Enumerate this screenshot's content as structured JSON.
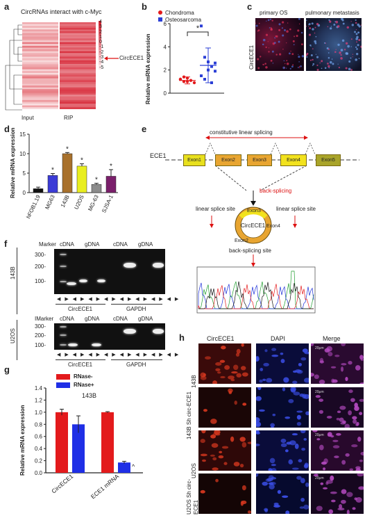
{
  "panels": {
    "a": {
      "letter": "a",
      "title": "CircRNAs interact with c-Myc",
      "x_labels": [
        "Input",
        "RIP"
      ],
      "callout": "CircECE1",
      "scale_ticks": [
        "4",
        "3",
        "2",
        "1",
        "0",
        "-1",
        "-2",
        "-3",
        "-4",
        "-5"
      ]
    },
    "b": {
      "letter": "b",
      "legend": [
        "Chondroma",
        "Osteosarcoma"
      ],
      "ylabel": "Relative mRNA expression",
      "significance": "*"
    },
    "c": {
      "letter": "c",
      "columns": [
        "primary OS",
        "pulmonary metastasis"
      ],
      "row_label": "CircECE1"
    },
    "d": {
      "letter": "d",
      "ylabel": "Relative mRNA expression"
    },
    "e": {
      "letter": "e",
      "gene": "ECE1",
      "exons": [
        "Exon1",
        "Exon2",
        "Exon3",
        "Exon4",
        "Exon5"
      ],
      "top_label": "constitutive linear splicing",
      "back_splicing": "back-splicing",
      "left_site": "linear splice site",
      "right_site": "linear splice site",
      "circle_label": "CircECE1",
      "ring_exons": [
        "Exon3",
        "Exon4",
        "Exon2"
      ],
      "bottom_site": "back-splicing site"
    },
    "f": {
      "letter": "f",
      "marker_label": "Marker",
      "lane_groups": [
        "cDNA",
        "gDNA",
        "cDNA",
        "gDNA"
      ],
      "size_markers": [
        "300-",
        "200-",
        "100-"
      ],
      "targets": [
        "CircECE1",
        "GAPDH"
      ],
      "cell_lines": [
        "143B",
        "U2OS"
      ],
      "gel2_marker": "IMarker"
    },
    "g": {
      "letter": "g",
      "legend": [
        "RNase-",
        "RNase+"
      ],
      "ylabel": "Relative mRNA expression",
      "inner_label": "143B",
      "caret": "^"
    },
    "h": {
      "letter": "h",
      "columns": [
        "CircECE1",
        "DAPI",
        "Merge"
      ],
      "rows": [
        "143B",
        "143B Sh circ-ECE1",
        "U2OS",
        "U2OS Sh circ-ECE1"
      ],
      "scale_text": "20μm"
    }
  },
  "chart_data": [
    {
      "panel": "b",
      "type": "scatter",
      "categories": [
        "Chondroma",
        "Osteosarcoma"
      ],
      "series": [
        {
          "name": "Chondroma",
          "color": "#e31a1c",
          "values": [
            1.2,
            1.0,
            1.3,
            1.1,
            0.9,
            1.2,
            1.4,
            1.0
          ]
        },
        {
          "name": "Osteosarcoma",
          "color": "#2b3fd6",
          "values": [
            5.8,
            3.1,
            2.7,
            2.3,
            1.9,
            1.5,
            1.2,
            2.0,
            0.9,
            2.6
          ]
        }
      ],
      "means": [
        1.1,
        2.4
      ],
      "sd": [
        0.3,
        1.5
      ],
      "ylabel": "Relative mRNA expression",
      "ylim": [
        0,
        6
      ],
      "y_ticks": [
        0,
        2,
        4,
        6
      ]
    },
    {
      "panel": "d",
      "type": "bar",
      "categories": [
        "hFOB1.19",
        "MG63",
        "143B",
        "U2OS",
        "MG-63",
        "SJSA-1"
      ],
      "values": [
        1.0,
        4.4,
        10.0,
        6.8,
        2.1,
        4.2
      ],
      "errors": [
        0.4,
        0.5,
        0.3,
        0.6,
        0.3,
        1.7
      ],
      "significance": [
        "",
        "*",
        "*",
        "*",
        "*",
        "*"
      ],
      "colors": [
        "#111111",
        "#3b3bd6",
        "#a8712c",
        "#e9ee1f",
        "#8c8c8c",
        "#7a1f6b"
      ],
      "ylabel": "Relative mRNA expression",
      "ylim": [
        0,
        15
      ],
      "y_ticks": [
        0,
        5,
        10,
        15
      ]
    },
    {
      "panel": "g",
      "type": "bar",
      "categories": [
        "CircECE1",
        "ECE1 mRNA"
      ],
      "series": [
        {
          "name": "RNase-",
          "color": "#e31a1c",
          "values": [
            1.0,
            1.0
          ],
          "errors": [
            0.05,
            0.01
          ]
        },
        {
          "name": "RNase+",
          "color": "#1f2fe6",
          "values": [
            0.8,
            0.17
          ],
          "errors": [
            0.14,
            0.02
          ]
        }
      ],
      "ylabel": "Relative mRNA expression",
      "ylim": [
        0,
        1.4
      ],
      "y_ticks": [
        0.0,
        0.2,
        0.4,
        0.6,
        0.8,
        1.0,
        1.2,
        1.4
      ]
    }
  ]
}
